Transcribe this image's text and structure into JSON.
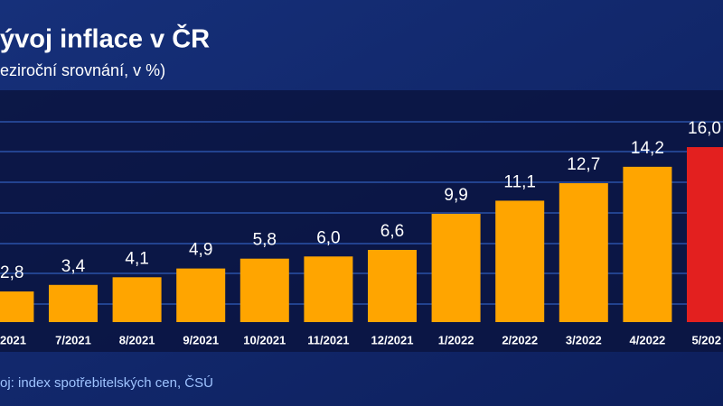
{
  "chart_data": {
    "type": "bar",
    "title": "ývoj inflace v ČR",
    "subtitle": "eziroční srovnání, v %)",
    "source": "oj: index spotřebitelských cen, ČSÚ",
    "categories": [
      "2021",
      "7/2021",
      "8/2021",
      "9/2021",
      "10/2021",
      "11/2021",
      "12/2021",
      "1/2022",
      "2/2022",
      "3/2022",
      "4/2022",
      "5/202"
    ],
    "values": [
      2.8,
      3.4,
      4.1,
      4.9,
      5.8,
      6.0,
      6.6,
      9.9,
      11.1,
      12.7,
      14.2,
      16.0
    ],
    "value_labels": [
      "2,8",
      "3,4",
      "4,1",
      "4,9",
      "5,8",
      "6,0",
      "6,6",
      "9,9",
      "11,1",
      "12,7",
      "14,2",
      "16,0"
    ],
    "colors": [
      "#ffa500",
      "#ffa500",
      "#ffa500",
      "#ffa500",
      "#ffa500",
      "#ffa500",
      "#ffa500",
      "#ffa500",
      "#ffa500",
      "#ffa500",
      "#ffa500",
      "#e3201f"
    ],
    "ylim": [
      0,
      21.2
    ]
  }
}
